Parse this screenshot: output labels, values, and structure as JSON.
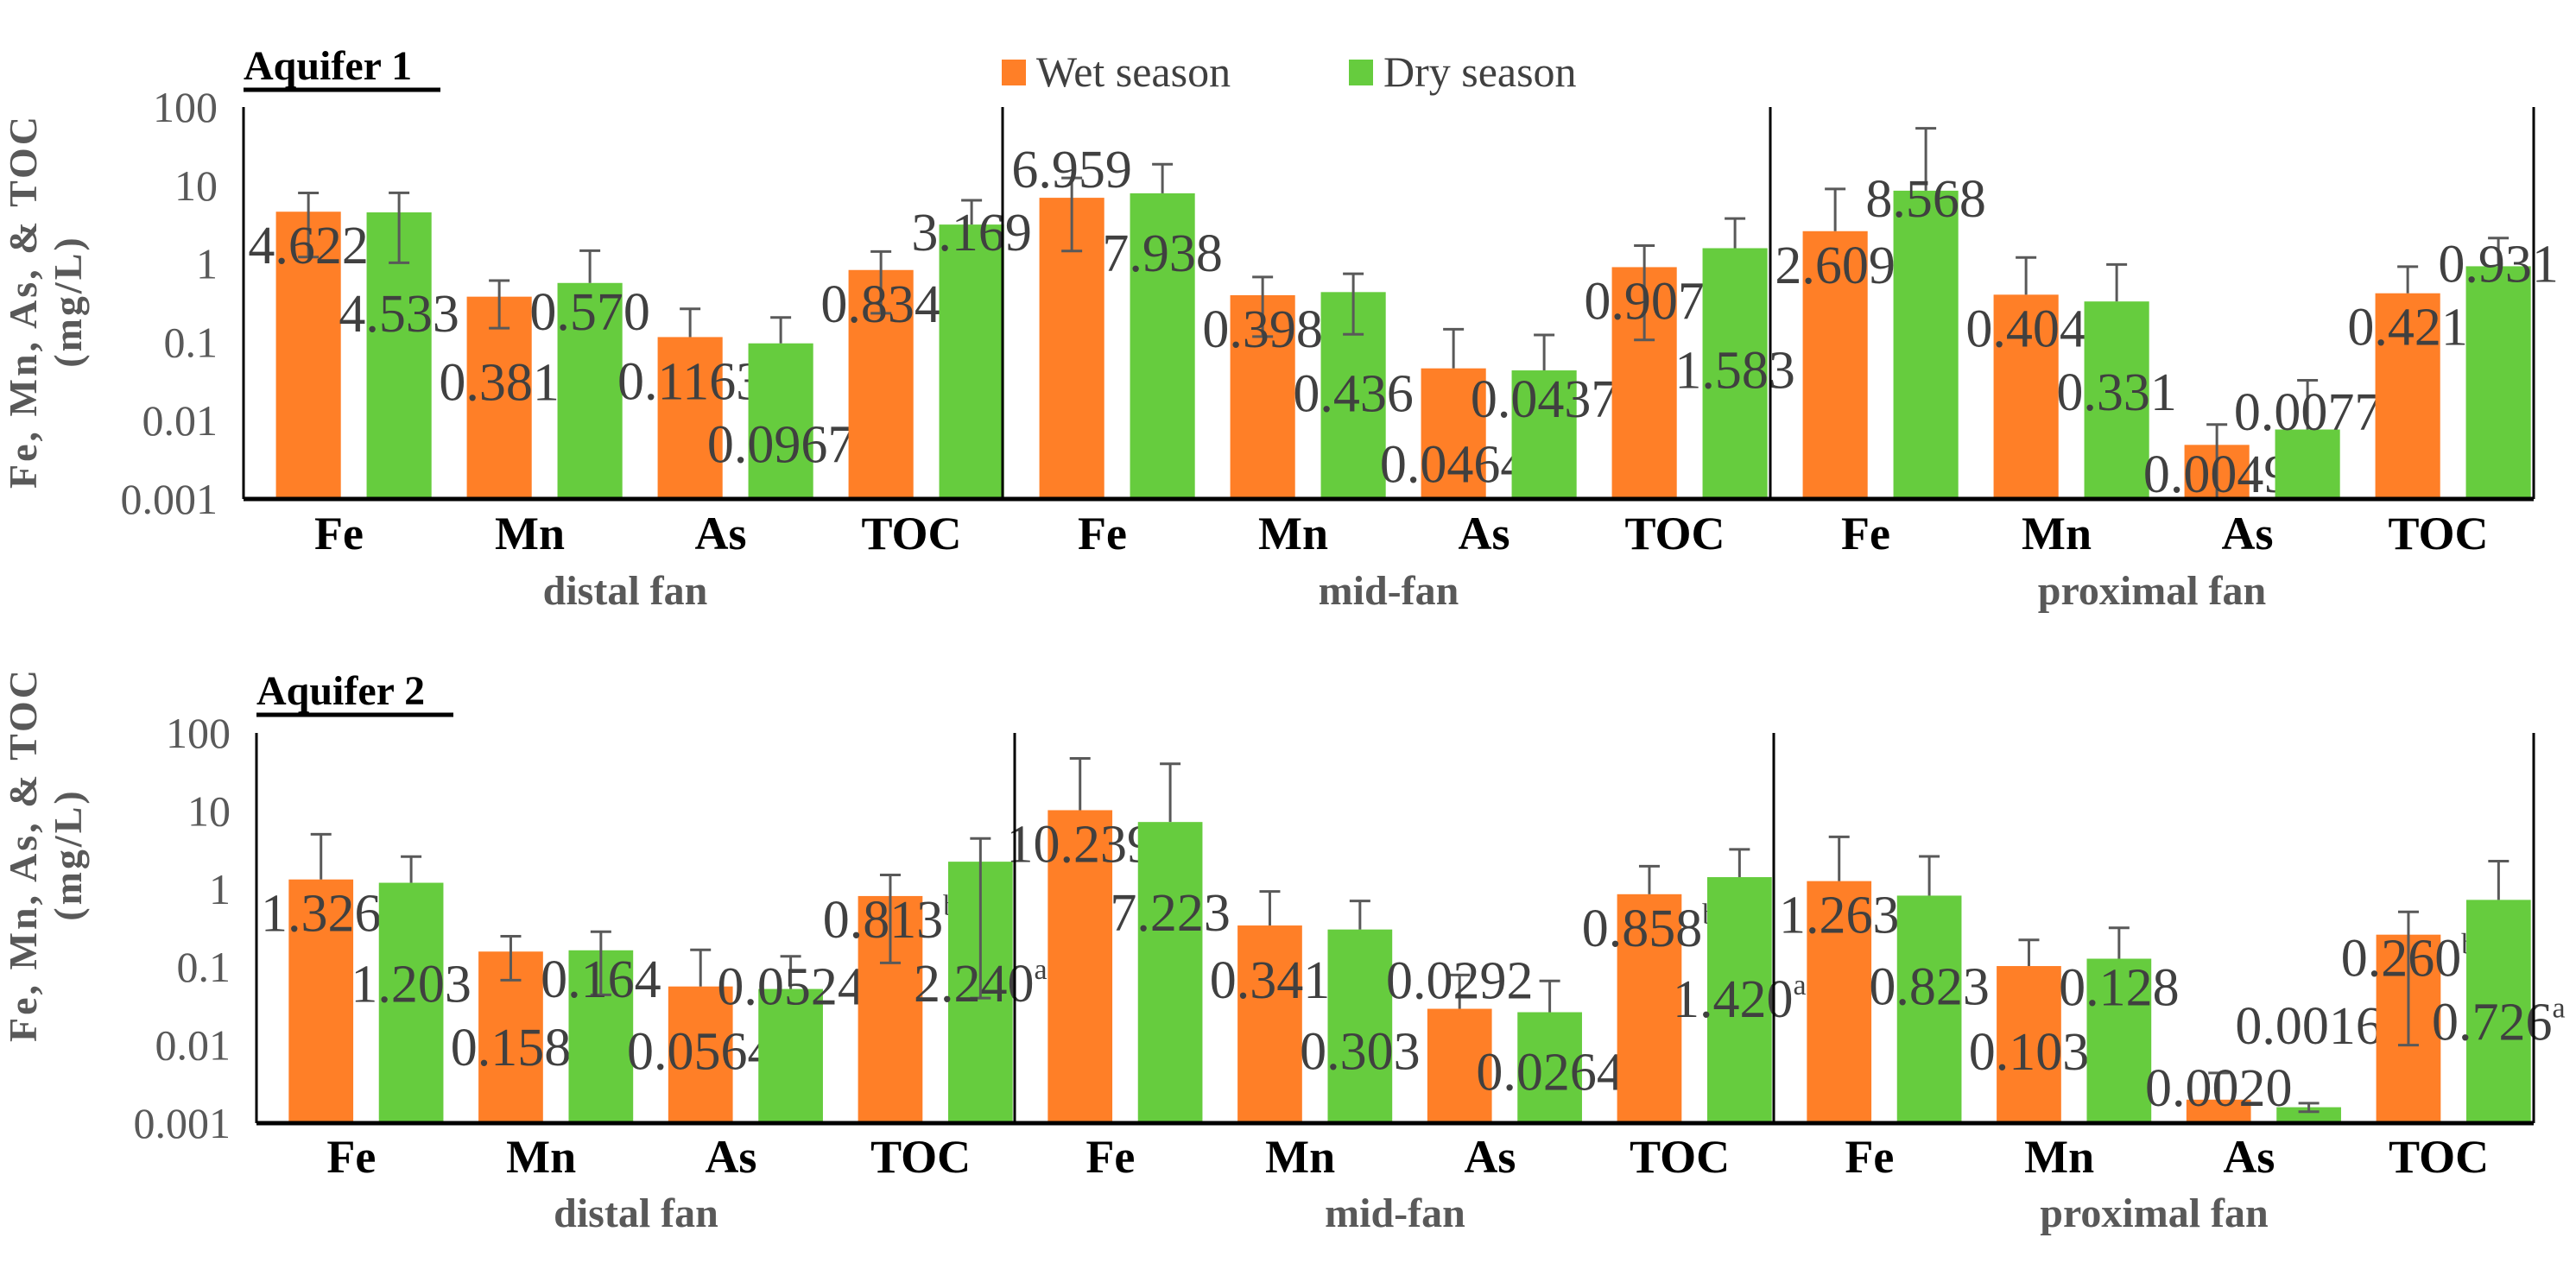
{
  "chart_data": {
    "type": "bar",
    "scale": "log",
    "ylim": [
      0.001,
      100
    ],
    "yticks": [
      "0.001",
      "0.01",
      "0.1",
      "1",
      "10",
      "100"
    ],
    "ytick_values": [
      0.001,
      0.01,
      0.1,
      1,
      10,
      100
    ],
    "ylabel_line1": "Fe, Mn, As, & TOC",
    "ylabel_line2": "(mg/L)",
    "legend": {
      "placement": "top-center",
      "entries": [
        "Wet season",
        "Dry season"
      ]
    },
    "colors": {
      "wet": "#FF7F27",
      "dry": "#66CC3E",
      "error": "#595959",
      "axis": "#000000"
    },
    "categories": [
      "Fe",
      "Mn",
      "As",
      "TOC"
    ],
    "panels": [
      {
        "title": "Aquifer 1",
        "groups": [
          {
            "name": "distal fan",
            "wet": [
              4.622,
              0.381,
              0.1163,
              0.834
            ],
            "wet_labels": [
              "4.622",
              "0.381",
              "0.1163",
              "0.834"
            ],
            "wet_sup": [
              "",
              "",
              "",
              ""
            ],
            "wet_sd": [
              3.4,
              0.23,
              0.15,
              0.6
            ],
            "dry": [
              4.533,
              0.57,
              0.0967,
              3.169
            ],
            "dry_labels": [
              "4.533",
              "0.570",
              "0.0967",
              "3.169"
            ],
            "dry_sup": [
              "",
              "",
              "",
              ""
            ],
            "dry_sd": [
              3.5,
              0.9,
              0.11,
              3.3
            ]
          },
          {
            "name": "mid-fan",
            "wet": [
              6.959,
              0.398,
              0.0464,
              0.907
            ],
            "wet_labels": [
              "6.959",
              "0.398",
              "0.0464",
              "0.907"
            ],
            "wet_sup": [
              "",
              "",
              "",
              ""
            ],
            "wet_sd": [
              5.5,
              0.28,
              0.1,
              0.8
            ],
            "dry": [
              7.938,
              0.436,
              0.0437,
              1.583
            ],
            "dry_labels": [
              "7.938",
              "0.436",
              "0.0437",
              "1.583"
            ],
            "dry_sup": [
              "",
              "",
              "",
              ""
            ],
            "dry_sd": [
              10.7,
              0.31,
              0.08,
              2.2
            ]
          },
          {
            "name": "proximal fan",
            "wet": [
              2.609,
              0.404,
              0.0049,
              0.421
            ],
            "wet_labels": [
              "2.609",
              "0.404",
              "0.0049",
              "0.421"
            ],
            "wet_sup": [
              "",
              "",
              "",
              ""
            ],
            "wet_sd": [
              6.4,
              0.8,
              0.004,
              0.5
            ],
            "dry": [
              8.568,
              0.331,
              0.0077,
              0.931
            ],
            "dry_labels": [
              "8.568",
              "0.331",
              "0.0077",
              "0.931"
            ],
            "dry_sup": [
              "",
              "",
              "",
              ""
            ],
            "dry_sd": [
              45,
              0.65,
              0.025,
              1.2
            ]
          }
        ]
      },
      {
        "title": "Aquifer 2",
        "groups": [
          {
            "name": "distal fan",
            "wet": [
              1.326,
              0.158,
              0.0564,
              0.813
            ],
            "wet_labels": [
              "1.326",
              "0.158",
              "0.0564",
              "0.813"
            ],
            "wet_sup": [
              "",
              "",
              "",
              "b"
            ],
            "wet_sd": [
              3.7,
              0.09,
              0.11,
              0.7
            ],
            "dry": [
              1.203,
              0.164,
              0.0524,
              2.24
            ],
            "dry_labels": [
              "1.203",
              "0.164",
              "0.0524",
              "2.240"
            ],
            "dry_sup": [
              "",
              "",
              "",
              "a"
            ],
            "dry_sd": [
              1.4,
              0.12,
              0.085,
              2.2
            ]
          },
          {
            "name": "mid-fan",
            "wet": [
              10.239,
              0.341,
              0.0292,
              0.858
            ],
            "wet_labels": [
              "10.239",
              "0.341",
              "0.0292",
              "0.858"
            ],
            "wet_sup": [
              "",
              "",
              "",
              "b"
            ],
            "wet_sd": [
              37,
              0.59,
              0.05,
              1.1
            ],
            "dry": [
              7.223,
              0.303,
              0.0264,
              1.42
            ],
            "dry_labels": [
              "7.223",
              "0.303",
              "0.0264",
              "1.420"
            ],
            "dry_sup": [
              "",
              "",
              "",
              "a"
            ],
            "dry_sd": [
              33,
              0.4,
              0.04,
              1.8
            ]
          },
          {
            "name": "proximal fan",
            "wet": [
              1.263,
              0.103,
              0.002,
              0.26
            ],
            "wet_labels": [
              "1.263",
              "0.103",
              "0.0020",
              "0.260"
            ],
            "wet_sup": [
              "",
              "",
              "",
              "b"
            ],
            "wet_sd": [
              3.4,
              0.12,
              0.0024,
              0.25
            ],
            "dry": [
              0.823,
              0.128,
              0.0016,
              0.726
            ],
            "dry_labels": [
              "0.823",
              "0.128",
              "0.0016",
              "0.726"
            ],
            "dry_sup": [
              "",
              "",
              "",
              "a"
            ],
            "dry_sd": [
              1.8,
              0.19,
              0.0002,
              1.55
            ]
          }
        ]
      }
    ]
  }
}
